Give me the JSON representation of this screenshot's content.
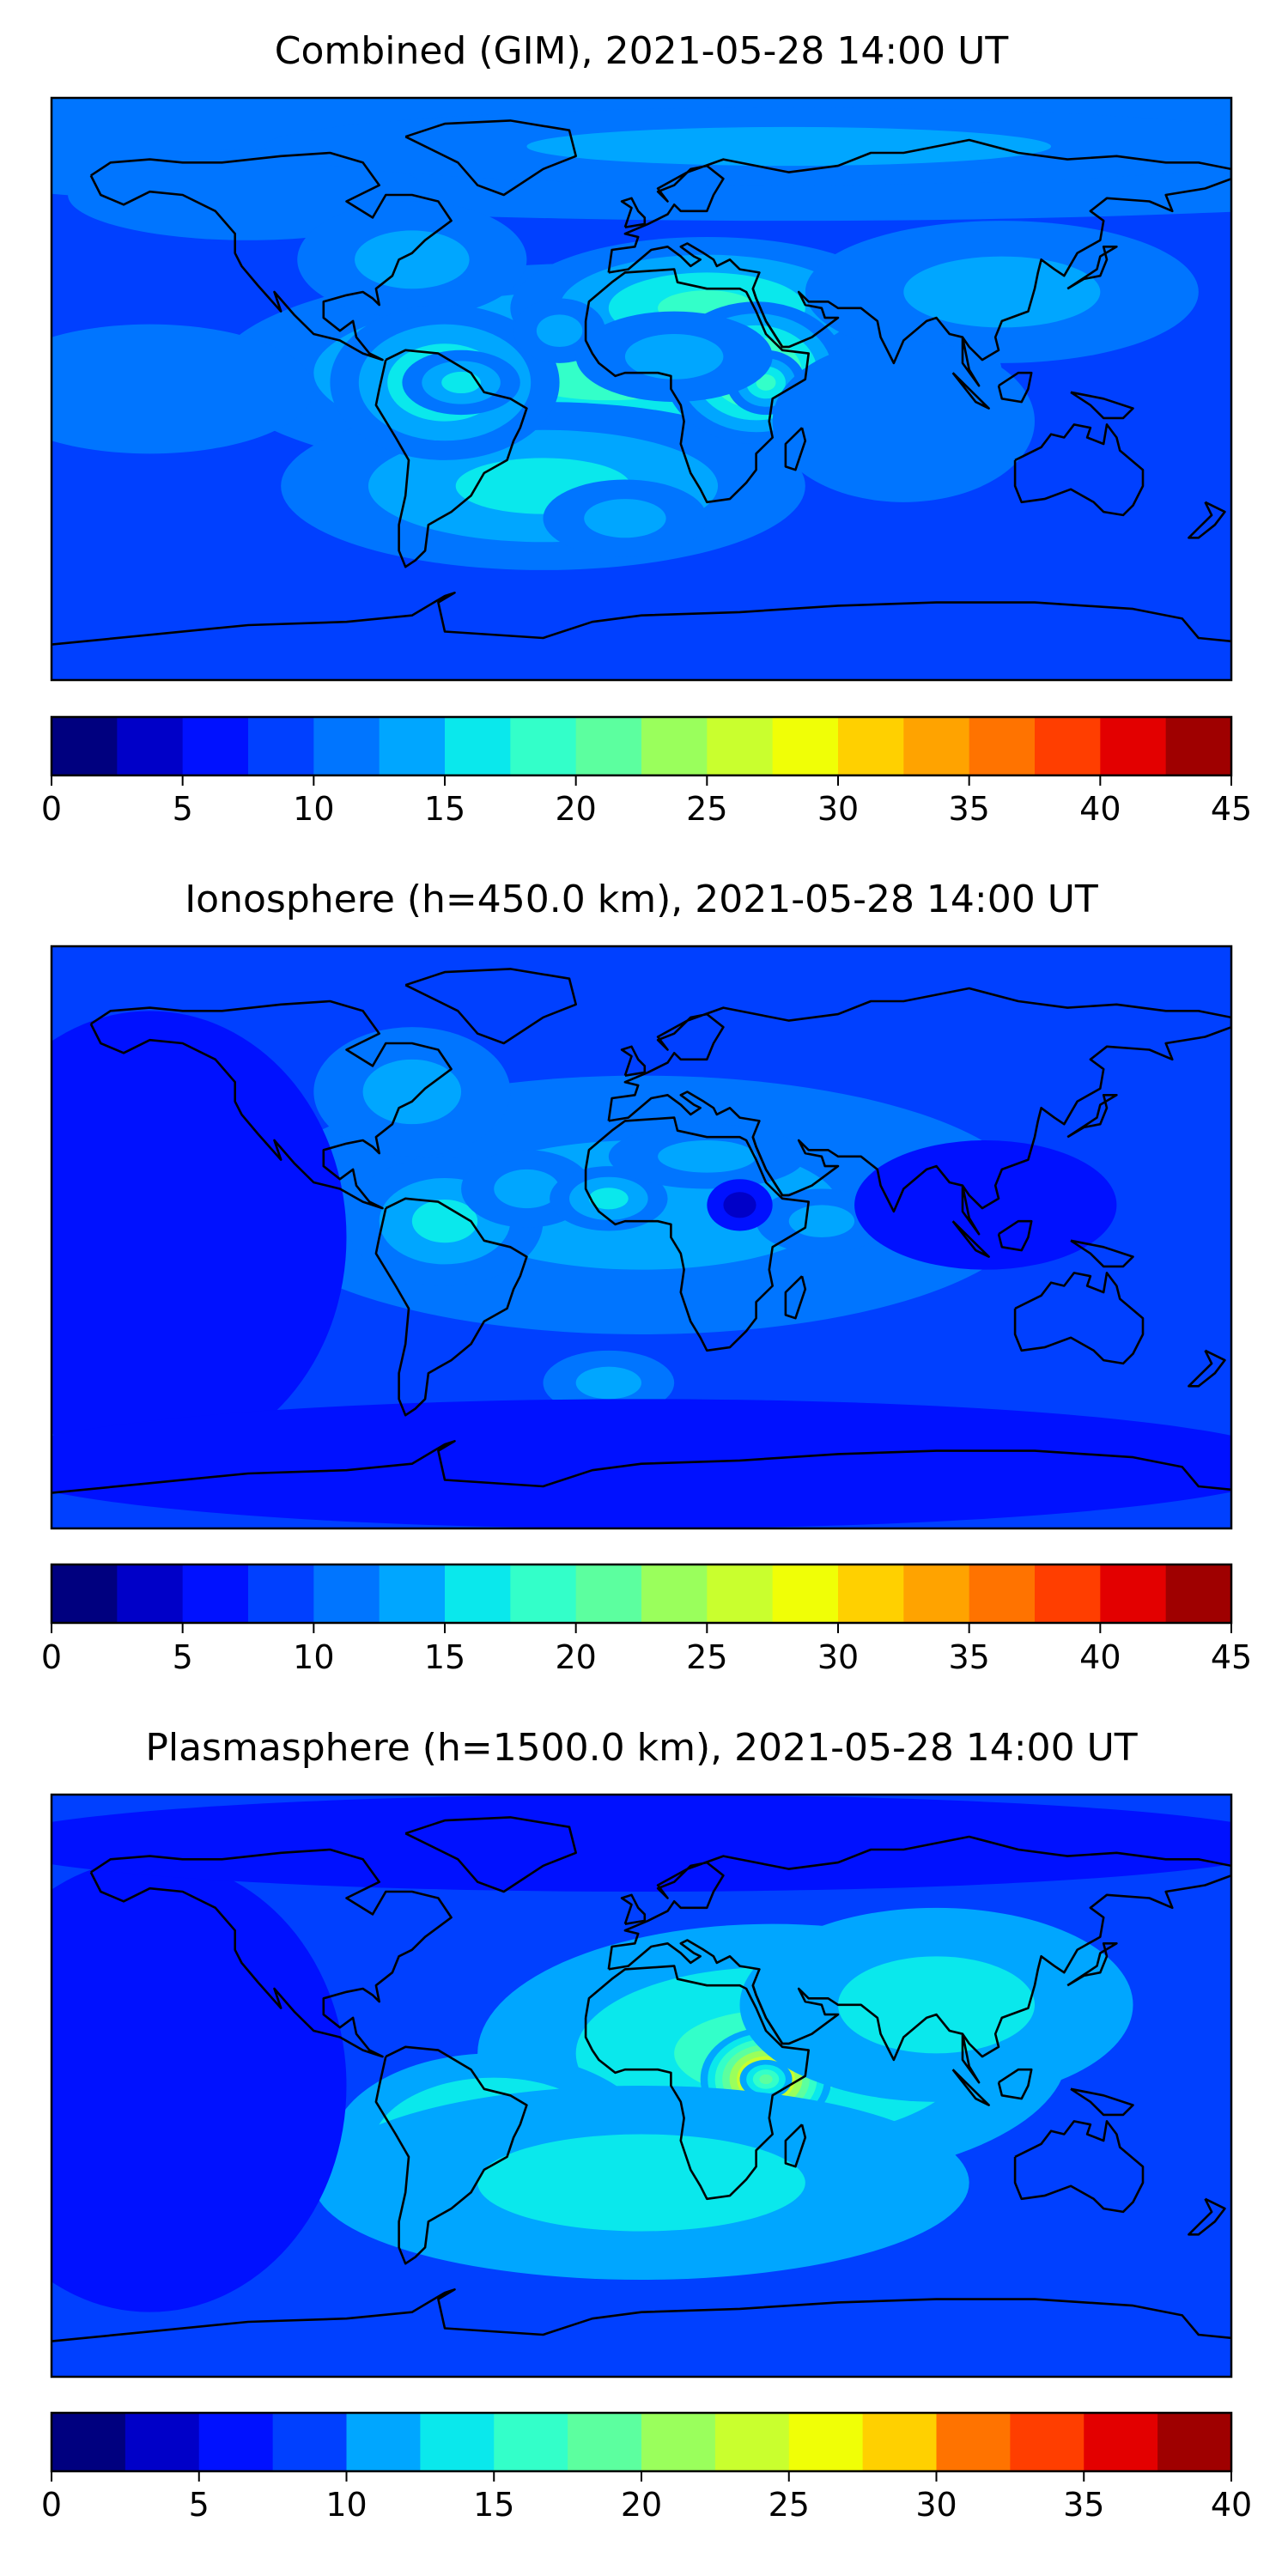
{
  "panels": [
    {
      "title": "Combined (GIM), 2021-05-28 14:00 UT",
      "colorbar": {
        "min": 0,
        "max": 45,
        "step": 2.5,
        "tick_labels": [
          "0",
          "5",
          "10",
          "15",
          "20",
          "25",
          "30",
          "35",
          "40",
          "45"
        ]
      },
      "blobs": [
        {
          "lon": 45,
          "lat": 90,
          "rx": 360,
          "ry": 38,
          "v": 2
        },
        {
          "lon": -120,
          "lat": 60,
          "rx": 55,
          "ry": 14,
          "v": 3
        },
        {
          "lon": 45,
          "lat": 75,
          "rx": 160,
          "ry": 12,
          "v": 4
        },
        {
          "lon": -10,
          "lat": 5,
          "rx": 120,
          "ry": 34,
          "v": 10
        },
        {
          "lon": -30,
          "lat": -30,
          "rx": 80,
          "ry": 26,
          "v": 7
        },
        {
          "lon": -70,
          "lat": 40,
          "rx": 35,
          "ry": 18,
          "v": 6
        },
        {
          "lon": 20,
          "lat": 25,
          "rx": 60,
          "ry": 22,
          "v": 9
        },
        {
          "lon": 110,
          "lat": 30,
          "rx": 60,
          "ry": 22,
          "v": 6
        },
        {
          "lon": -60,
          "lat": 2,
          "rx": 35,
          "ry": 24,
          "v": 11
        },
        {
          "lon": -55,
          "lat": 2,
          "rx": 18,
          "ry": 10,
          "v": 8
        },
        {
          "lon": -25,
          "lat": 18,
          "rx": 14,
          "ry": 10,
          "v": 6
        },
        {
          "lon": 35,
          "lat": 5,
          "rx": 28,
          "ry": 22,
          "v": 14
        },
        {
          "lon": 38,
          "lat": 2,
          "rx": 12,
          "ry": 10,
          "v": 10
        },
        {
          "lon": 10,
          "lat": 10,
          "rx": 30,
          "ry": 14,
          "v": 6
        },
        {
          "lon": -5,
          "lat": -40,
          "rx": 25,
          "ry": 12,
          "v": 4
        },
        {
          "lon": 80,
          "lat": -10,
          "rx": 40,
          "ry": 25,
          "v": 3
        },
        {
          "lon": -150,
          "lat": 0,
          "rx": 50,
          "ry": 20,
          "v": 2
        }
      ]
    },
    {
      "title": "Ionosphere  (h=450.0 km), 2021-05-28 14:00 UT",
      "colorbar": {
        "min": 0,
        "max": 45,
        "step": 2.5,
        "tick_labels": [
          "0",
          "5",
          "10",
          "15",
          "20",
          "25",
          "30",
          "35",
          "40",
          "45"
        ]
      },
      "blobs": [
        {
          "lon": 0,
          "lat": 10,
          "rx": 120,
          "ry": 40,
          "v": 6
        },
        {
          "lon": -70,
          "lat": 45,
          "rx": 30,
          "ry": 20,
          "v": 6
        },
        {
          "lon": -60,
          "lat": 5,
          "rx": 30,
          "ry": 20,
          "v": 8
        },
        {
          "lon": -35,
          "lat": 15,
          "rx": 20,
          "ry": 12,
          "v": 5
        },
        {
          "lon": -10,
          "lat": 12,
          "rx": 18,
          "ry": 10,
          "v": 8
        },
        {
          "lon": 20,
          "lat": 25,
          "rx": 30,
          "ry": 10,
          "v": 4
        },
        {
          "lon": -10,
          "lat": -45,
          "rx": 20,
          "ry": 10,
          "v": 4
        },
        {
          "lon": 55,
          "lat": 5,
          "rx": 20,
          "ry": 10,
          "v": 4
        },
        {
          "lon": 30,
          "lat": 10,
          "rx": 10,
          "ry": 8,
          "v": -5
        },
        {
          "lon": 105,
          "lat": 10,
          "rx": 40,
          "ry": 20,
          "v": -3
        },
        {
          "lon": -150,
          "lat": 0,
          "rx": 60,
          "ry": 70,
          "v": -3
        },
        {
          "lon": 0,
          "lat": -70,
          "rx": 200,
          "ry": 20,
          "v": -3
        }
      ]
    },
    {
      "title": "Plasmasphere (h=1500.0 km), 2021-05-28 14:00 UT",
      "colorbar": {
        "min": 0,
        "max": 40,
        "step": 2.5,
        "tick_labels": [
          "0",
          "5",
          "10",
          "15",
          "20",
          "25",
          "30",
          "35",
          "40"
        ]
      },
      "blobs": [
        {
          "lon": 40,
          "lat": 10,
          "rx": 90,
          "ry": 40,
          "v": 8
        },
        {
          "lon": 38,
          "lat": 2,
          "rx": 20,
          "ry": 16,
          "v": 22
        },
        {
          "lon": 38,
          "lat": 2,
          "rx": 8,
          "ry": 6,
          "v": 10
        },
        {
          "lon": -45,
          "lat": -20,
          "rx": 50,
          "ry": 30,
          "v": 10
        },
        {
          "lon": 90,
          "lat": 25,
          "rx": 60,
          "ry": 30,
          "v": 5
        },
        {
          "lon": 0,
          "lat": -30,
          "rx": 100,
          "ry": 30,
          "v": 5
        },
        {
          "lon": -150,
          "lat": 0,
          "rx": 60,
          "ry": 70,
          "v": -3
        },
        {
          "lon": 0,
          "lat": 75,
          "rx": 200,
          "ry": 15,
          "v": -3
        }
      ]
    }
  ]
}
